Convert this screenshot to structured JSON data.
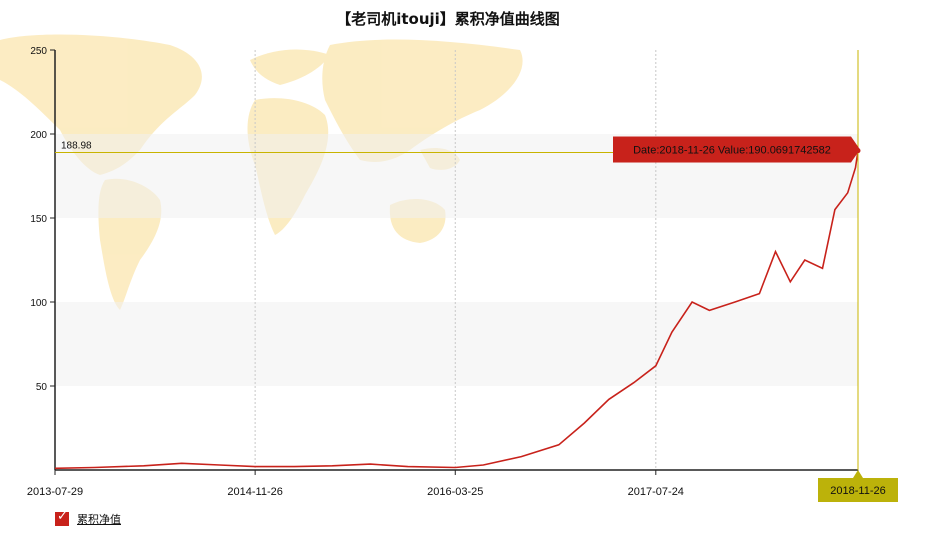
{
  "chart_data": {
    "type": "line",
    "title": "【老司机itouji】累积净值曲线图",
    "xlabel": "",
    "ylabel": "",
    "xlim": [
      "2013-07-29",
      "2018-11-26"
    ],
    "ylim": [
      0,
      250
    ],
    "y_ticks": [
      50,
      100,
      150,
      200,
      250
    ],
    "x_ticks": [
      "2013-07-29",
      "2014-11-26",
      "2016-03-25",
      "2017-07-24",
      "2018-11-26"
    ],
    "grid": "banded horizontal stripes, dotted vertical lines",
    "background": "world-map-watermark",
    "series": [
      {
        "name": "累积净值",
        "color": "#c8221b",
        "x": [
          "2013-07-29",
          "2013-11-01",
          "2014-03-01",
          "2014-06-01",
          "2014-09-01",
          "2014-11-26",
          "2015-03-01",
          "2015-06-01",
          "2015-09-01",
          "2015-12-01",
          "2016-03-25",
          "2016-06-01",
          "2016-09-01",
          "2016-12-01",
          "2017-02-01",
          "2017-04-01",
          "2017-06-01",
          "2017-07-24",
          "2017-09-01",
          "2017-10-20",
          "2017-12-01",
          "2018-02-01",
          "2018-04-01",
          "2018-05-10",
          "2018-06-15",
          "2018-07-20",
          "2018-09-01",
          "2018-10-01",
          "2018-11-01",
          "2018-11-20",
          "2018-11-26"
        ],
        "values": [
          1,
          1.5,
          2.5,
          4,
          3,
          2,
          2,
          2.5,
          3.5,
          2,
          1.5,
          3,
          8,
          15,
          28,
          42,
          52,
          62,
          82,
          100,
          95,
          100,
          105,
          130,
          112,
          125,
          120,
          155,
          165,
          180,
          190.07
        ]
      }
    ],
    "crosshair": {
      "y_value_label": "188.98",
      "tooltip": "Date:2018-11-26  Value:190.0691742582",
      "x_label": "2018-11-26"
    },
    "colors": {
      "line": "#c8221b",
      "crosshair": "#c8b400",
      "tooltip_bg": "#c8221b",
      "x_badge_bg": "#bcb20a"
    }
  }
}
